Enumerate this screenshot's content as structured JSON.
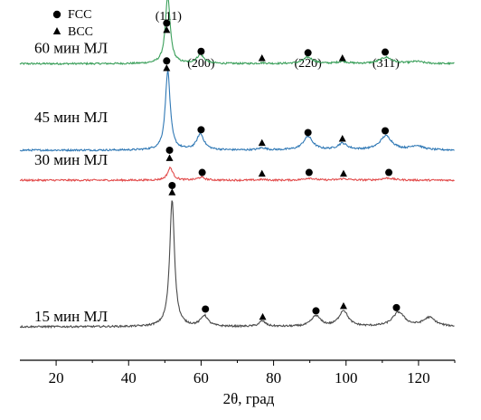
{
  "chart_data": {
    "type": "line",
    "xlabel": "2θ, град",
    "ylabel": "",
    "xlim": [
      10,
      130
    ],
    "x_ticks": [
      20,
      40,
      60,
      80,
      100,
      120
    ],
    "y_ticks_shown": false,
    "grid": false,
    "legend": {
      "placement": "top-left",
      "entries": [
        {
          "marker": "circle",
          "label": "FCC"
        },
        {
          "marker": "triangle",
          "label": "BCC"
        }
      ]
    },
    "peak_labels": [
      {
        "text": "(111)",
        "x": 51
      },
      {
        "text": "(200)",
        "x": 60
      },
      {
        "text": "(220)",
        "x": 89.5
      },
      {
        "text": "(311)",
        "x": 111
      }
    ],
    "series": [
      {
        "name": "60 мин МЛ",
        "color": "#3a9f5a",
        "baseline": 0.84,
        "peaks": [
          {
            "x": 50.8,
            "h": 0.19,
            "w": 0.8
          },
          {
            "x": 59.8,
            "h": 0.025,
            "w": 1.2
          },
          {
            "x": 76.9,
            "h": 0.002,
            "w": 1.2
          },
          {
            "x": 89.5,
            "h": 0.018,
            "w": 1.6
          },
          {
            "x": 99.0,
            "h": 0.006,
            "w": 1.6
          },
          {
            "x": 111.0,
            "h": 0.018,
            "w": 2.0
          },
          {
            "x": 119.5,
            "h": 0.006,
            "w": 2.0
          }
        ],
        "markers": [
          {
            "x": 50.5,
            "y": 0.955,
            "kind": "circle"
          },
          {
            "x": 50.5,
            "y": 0.935,
            "kind": "triangle"
          },
          {
            "x": 60.0,
            "y": 0.875,
            "kind": "circle"
          },
          {
            "x": 76.8,
            "y": 0.855,
            "kind": "triangle"
          },
          {
            "x": 89.5,
            "y": 0.871,
            "kind": "circle"
          },
          {
            "x": 99.0,
            "y": 0.855,
            "kind": "triangle"
          },
          {
            "x": 110.8,
            "y": 0.873,
            "kind": "circle"
          }
        ]
      },
      {
        "name": "45 мин МЛ",
        "color": "#2f78b5",
        "baseline": 0.595,
        "peaks": [
          {
            "x": 50.8,
            "h": 0.225,
            "w": 0.8
          },
          {
            "x": 59.8,
            "h": 0.045,
            "w": 1.2
          },
          {
            "x": 76.9,
            "h": 0.006,
            "w": 1.2
          },
          {
            "x": 89.5,
            "h": 0.038,
            "w": 1.6
          },
          {
            "x": 99.0,
            "h": 0.018,
            "w": 1.6
          },
          {
            "x": 111.0,
            "h": 0.04,
            "w": 2.0
          },
          {
            "x": 119.5,
            "h": 0.012,
            "w": 2.0
          }
        ],
        "markers": [
          {
            "x": 50.5,
            "y": 0.848,
            "kind": "circle"
          },
          {
            "x": 50.5,
            "y": 0.827,
            "kind": "triangle"
          },
          {
            "x": 60.0,
            "y": 0.653,
            "kind": "circle"
          },
          {
            "x": 76.8,
            "y": 0.615,
            "kind": "triangle"
          },
          {
            "x": 89.5,
            "y": 0.645,
            "kind": "circle"
          },
          {
            "x": 99.0,
            "y": 0.627,
            "kind": "triangle"
          },
          {
            "x": 110.8,
            "y": 0.65,
            "kind": "circle"
          }
        ]
      },
      {
        "name": "30 мин МЛ",
        "color": "#e24b4b",
        "baseline": 0.51,
        "peaks": [
          {
            "x": 51.5,
            "h": 0.035,
            "w": 0.9
          },
          {
            "x": 60.0,
            "h": 0.008,
            "w": 1.2
          },
          {
            "x": 76.9,
            "h": 0.002,
            "w": 1.2
          },
          {
            "x": 89.8,
            "h": 0.006,
            "w": 1.6
          },
          {
            "x": 99.3,
            "h": 0.004,
            "w": 1.6
          },
          {
            "x": 111.5,
            "h": 0.006,
            "w": 2.0
          }
        ],
        "markers": [
          {
            "x": 51.3,
            "y": 0.595,
            "kind": "circle"
          },
          {
            "x": 51.3,
            "y": 0.572,
            "kind": "triangle"
          },
          {
            "x": 60.3,
            "y": 0.532,
            "kind": "circle"
          },
          {
            "x": 76.8,
            "y": 0.528,
            "kind": "triangle"
          },
          {
            "x": 89.8,
            "y": 0.532,
            "kind": "circle"
          },
          {
            "x": 99.3,
            "y": 0.528,
            "kind": "triangle"
          },
          {
            "x": 111.8,
            "y": 0.532,
            "kind": "circle"
          }
        ]
      },
      {
        "name": "15 мин МЛ",
        "color": "#4a4a4a",
        "baseline": 0.095,
        "peaks": [
          {
            "x": 52.0,
            "h": 0.36,
            "w": 0.8
          },
          {
            "x": 60.9,
            "h": 0.03,
            "w": 1.2
          },
          {
            "x": 76.9,
            "h": 0.015,
            "w": 1.1
          },
          {
            "x": 91.7,
            "h": 0.03,
            "w": 1.5
          },
          {
            "x": 99.3,
            "h": 0.045,
            "w": 1.5
          },
          {
            "x": 114.5,
            "h": 0.04,
            "w": 2.0
          },
          {
            "x": 123.0,
            "h": 0.025,
            "w": 2.0
          }
        ],
        "markers": [
          {
            "x": 52.0,
            "y": 0.495,
            "kind": "circle"
          },
          {
            "x": 52.0,
            "y": 0.475,
            "kind": "triangle"
          },
          {
            "x": 61.2,
            "y": 0.145,
            "kind": "circle"
          },
          {
            "x": 77.0,
            "y": 0.122,
            "kind": "triangle"
          },
          {
            "x": 91.7,
            "y": 0.14,
            "kind": "circle"
          },
          {
            "x": 99.3,
            "y": 0.153,
            "kind": "triangle"
          },
          {
            "x": 113.9,
            "y": 0.149,
            "kind": "circle"
          }
        ]
      }
    ]
  }
}
